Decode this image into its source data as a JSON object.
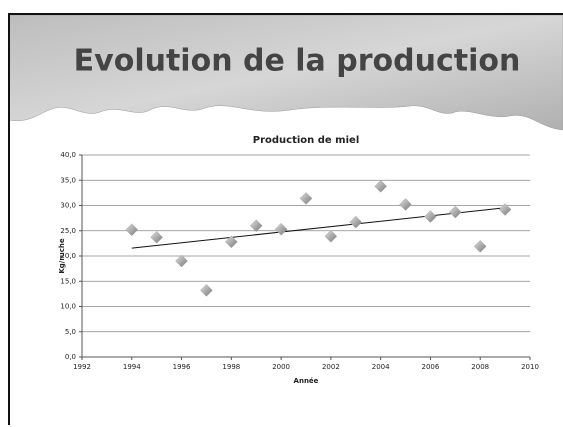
{
  "slide_title": "Evolution de la production",
  "chart_data": {
    "type": "scatter",
    "title": "Production de miel",
    "x_label": "Année",
    "y_label": "Kg/ruche",
    "x": [
      1994,
      1995,
      1996,
      1997,
      1998,
      1999,
      2000,
      2001,
      2002,
      2003,
      2004,
      2005,
      2006,
      2007,
      2008,
      2009
    ],
    "values": [
      25.2,
      23.7,
      19.0,
      13.2,
      22.8,
      26.0,
      25.3,
      31.4,
      23.9,
      26.7,
      33.8,
      30.2,
      27.8,
      28.7,
      21.9,
      29.2
    ],
    "color": "#a8a8a8",
    "xlim": [
      1992,
      2010
    ],
    "xticks": [
      1992,
      1994,
      1996,
      1998,
      2000,
      2002,
      2004,
      2006,
      2008,
      2010
    ],
    "ylim": [
      0,
      40
    ],
    "yticks": [
      {
        "value": 0,
        "label": "0,0"
      },
      {
        "value": 5,
        "label": "5,0"
      },
      {
        "value": 10,
        "label": "10,0"
      },
      {
        "value": 15,
        "label": "15,0"
      },
      {
        "value": 20,
        "label": "20,0"
      },
      {
        "value": 25,
        "label": "25,0"
      },
      {
        "value": 30,
        "label": "30,0"
      },
      {
        "value": 35,
        "label": "35,0"
      },
      {
        "value": 40,
        "label": "40,0"
      }
    ],
    "grid": true,
    "trendline": true
  }
}
